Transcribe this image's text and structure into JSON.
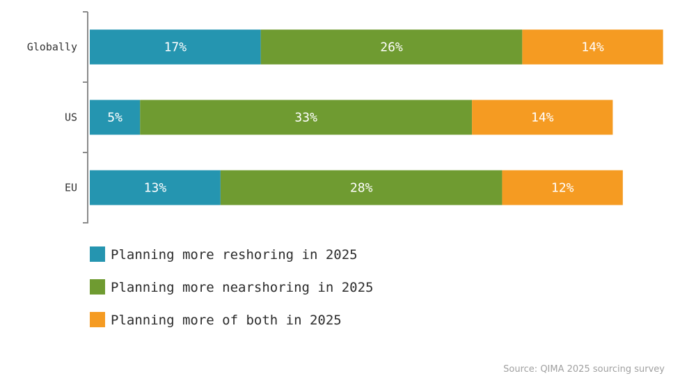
{
  "chart_data": {
    "type": "bar",
    "orientation": "horizontal",
    "stacked": true,
    "categories": [
      "Globally",
      "US",
      "EU"
    ],
    "series": [
      {
        "name": "Planning more reshoring in 2025",
        "values": [
          17,
          5,
          13
        ],
        "color": "#2595b0"
      },
      {
        "name": "Planning more nearshoring in 2025",
        "values": [
          26,
          33,
          28
        ],
        "color": "#6f9b31"
      },
      {
        "name": "Planning more of both in 2025",
        "values": [
          14,
          14,
          12
        ],
        "color": "#f59b22"
      }
    ],
    "value_suffix": "%",
    "xlim": [
      0,
      57
    ],
    "grid": false,
    "legend_position": "bottom-left",
    "source": "Source: QIMA 2025 sourcing survey"
  }
}
